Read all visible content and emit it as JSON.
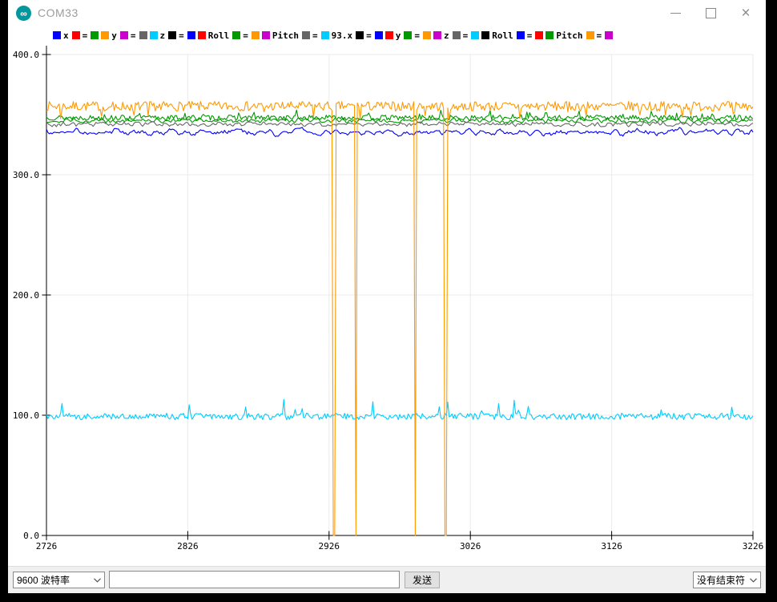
{
  "titlebar": {
    "title": "COM33",
    "app_icon": "arduino-logo-icon",
    "close_glyph": "×"
  },
  "legend": {
    "entries": [
      {
        "color": "#0000FF",
        "label": "x"
      },
      {
        "color": "#FF0000",
        "label": "="
      },
      {
        "color": "#009900",
        "label": ""
      },
      {
        "color": "#FF9900",
        "label": "y"
      },
      {
        "color": "#CC00CC",
        "label": "="
      },
      {
        "color": "#666666",
        "label": ""
      },
      {
        "color": "#00CCFF",
        "label": "z"
      },
      {
        "color": "#000000",
        "label": "="
      },
      {
        "color": "#0000FF",
        "label": ""
      },
      {
        "color": "#FF0000",
        "label": "Roll"
      },
      {
        "color": "#009900",
        "label": "="
      },
      {
        "color": "#FF9900",
        "label": ""
      },
      {
        "color": "#CC00CC",
        "label": "Pitch"
      },
      {
        "color": "#666666",
        "label": "="
      },
      {
        "color": "#00CCFF",
        "label": "93.x"
      },
      {
        "color": "#000000",
        "label": "="
      },
      {
        "color": "#0000FF",
        "label": ""
      },
      {
        "color": "#FF0000",
        "label": "y"
      },
      {
        "color": "#009900",
        "label": "="
      },
      {
        "color": "#FF9900",
        "label": ""
      },
      {
        "color": "#CC00CC",
        "label": "z"
      },
      {
        "color": "#666666",
        "label": "="
      },
      {
        "color": "#00CCFF",
        "label": ""
      },
      {
        "color": "#000000",
        "label": "Roll"
      },
      {
        "color": "#0000FF",
        "label": "="
      },
      {
        "color": "#FF0000",
        "label": ""
      },
      {
        "color": "#009900",
        "label": "Pitch"
      },
      {
        "color": "#FF9900",
        "label": "="
      },
      {
        "color": "#CC00CC",
        "label": ""
      }
    ]
  },
  "chart_data": {
    "type": "line",
    "title": "",
    "xlabel": "",
    "ylabel": "",
    "x_range": [
      2726,
      3226
    ],
    "y_range": [
      0,
      400
    ],
    "x_ticks": [
      "2726",
      "2826",
      "2926",
      "3026",
      "3126",
      "3226"
    ],
    "y_ticks": [
      "0.0",
      "100.0",
      "200.0",
      "300.0",
      "400.0"
    ],
    "grid": true,
    "grid_color": "#ebebeb",
    "samples": 500,
    "series": [
      {
        "name": "green-secondary-trace",
        "color": "#009900",
        "baseline": 345.0,
        "noise": 1.3,
        "smooth": 2,
        "seed": 29
      },
      {
        "name": "gray-trace",
        "color": "#666666",
        "baseline": 342.0,
        "noise": 1.3,
        "smooth": 2,
        "seed": 43
      },
      {
        "name": "green-trace",
        "color": "#009900",
        "baseline": 347.5,
        "noise": 1.7,
        "smooth": 1,
        "seed": 13,
        "spikes": {
          "prob": 0.06,
          "min": 2,
          "max": 5
        }
      },
      {
        "name": "blue-trace",
        "color": "#0000FF",
        "baseline": 335.5,
        "noise": 2.0,
        "smooth": 4,
        "seed": 57
      },
      {
        "name": "cyan-trace",
        "color": "#00CCFF",
        "baseline": 99.0,
        "noise": 2.2,
        "smooth": 1,
        "seed": 71,
        "spikes": {
          "prob": 0.04,
          "min": 3,
          "max": 12
        }
      },
      {
        "name": "orange-trace",
        "color": "#FF9900",
        "baseline": 357.0,
        "noise": 3.2,
        "smooth": 1,
        "seed": 7,
        "spikes": {
          "prob": 0.05,
          "min": -9,
          "max": -3
        },
        "dropouts": [
          [
            2929,
            2
          ],
          [
            2945,
            1
          ],
          [
            2987,
            1
          ],
          [
            3008,
            2
          ]
        ]
      }
    ]
  },
  "bottom_bar": {
    "baud_select_value": "9600 波特率",
    "message_input_value": "",
    "send_button_label": "发送",
    "line_ending_select_value": "没有结束符"
  }
}
